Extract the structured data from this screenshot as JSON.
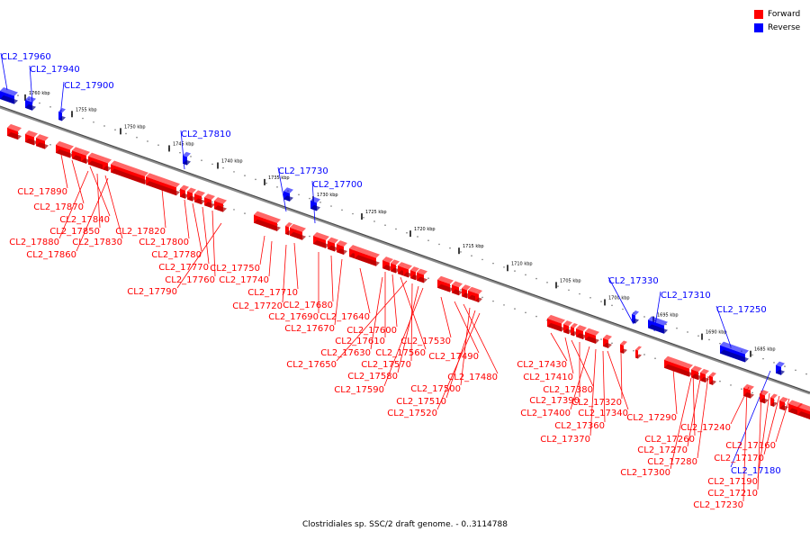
{
  "caption": "Clostridiales sp. SSC/2 draft genome. - 0..3114788",
  "legend": [
    {
      "label": "Forward",
      "color": "#ff0000"
    },
    {
      "label": "Reverse",
      "color": "#0000ff"
    }
  ],
  "colors": {
    "forward": "#ff0000",
    "reverse": "#0000ff",
    "forward_dark": "#a80000",
    "reverse_dark": "#00008a"
  },
  "ticks": [
    "1760 kbp",
    "1755 kbp",
    "1750 kbp",
    "1745 kbp",
    "1740 kbp",
    "1735 kbp",
    "1730 kbp",
    "1725 kbp",
    "1720 kbp",
    "1715 kbp",
    "1710 kbp",
    "1705 kbp",
    "1700 kbp",
    "1695 kbp",
    "1690 kbp",
    "1685 kbp"
  ],
  "reverse_labels": [
    "CL2_17960",
    "CL2_17940",
    "CL2_17900",
    "CL2_17810",
    "CL2_17730",
    "CL2_17700",
    "CL2_17330",
    "CL2_17310",
    "CL2_17250",
    "CL2_17180"
  ],
  "forward_labels": [
    "CL2_17890",
    "CL2_17870",
    "CL2_17840",
    "CL2_17880",
    "CL2_17850",
    "CL2_17830",
    "CL2_17860",
    "CL2_17820",
    "CL2_17800",
    "CL2_17780",
    "CL2_17770",
    "CL2_17760",
    "CL2_17790",
    "CL2_17750",
    "CL2_17740",
    "CL2_17710",
    "CL2_17720",
    "CL2_17690",
    "CL2_17680",
    "CL2_17670",
    "CL2_17640",
    "CL2_17610",
    "CL2_17600",
    "CL2_17630",
    "CL2_17560",
    "CL2_17650",
    "CL2_17570",
    "CL2_17580",
    "CL2_17590",
    "CL2_17530",
    "CL2_17490",
    "CL2_17480",
    "CL2_17500",
    "CL2_17510",
    "CL2_17520",
    "CL2_17430",
    "CL2_17410",
    "CL2_17380",
    "CL2_17390",
    "CL2_17400",
    "CL2_17320",
    "CL2_17340",
    "CL2_17360",
    "CL2_17370",
    "CL2_17290",
    "CL2_17260",
    "CL2_17270",
    "CL2_17280",
    "CL2_17300",
    "CL2_17240",
    "CL2_17160",
    "CL2_17170",
    "CL2_17190",
    "CL2_17210",
    "CL2_17230"
  ]
}
